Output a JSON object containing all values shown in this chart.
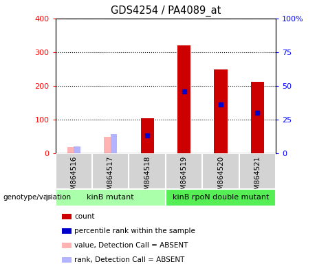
{
  "title": "GDS4254 / PA4089_at",
  "samples": [
    "GSM864516",
    "GSM864517",
    "GSM864518",
    "GSM864519",
    "GSM864520",
    "GSM864521"
  ],
  "count_values": [
    0,
    0,
    104,
    320,
    248,
    212
  ],
  "percentile_rank": [
    0,
    0,
    13,
    46,
    36,
    30
  ],
  "count_absent": [
    18,
    48,
    0,
    0,
    0,
    0
  ],
  "rank_absent": [
    5,
    14,
    0,
    0,
    0,
    0
  ],
  "absent_flags": [
    true,
    true,
    false,
    false,
    false,
    false
  ],
  "color_count": "#cc0000",
  "color_rank": "#0000cc",
  "color_count_absent": "#ffb3b3",
  "color_rank_absent": "#b3b3ff",
  "groups": [
    {
      "label": "kinB mutant",
      "indices": [
        0,
        1,
        2
      ],
      "color": "#aaffaa"
    },
    {
      "label": "kinB rpoN double mutant",
      "indices": [
        3,
        4,
        5
      ],
      "color": "#55ee55"
    }
  ],
  "ylim_left": [
    0,
    400
  ],
  "ylim_right": [
    0,
    100
  ],
  "yticks_left": [
    0,
    100,
    200,
    300,
    400
  ],
  "yticks_right": [
    0,
    25,
    50,
    75,
    100
  ],
  "yticklabels_right": [
    "0",
    "25",
    "50",
    "75",
    "100%"
  ],
  "bar_width": 0.18,
  "background_color": "#ffffff",
  "plot_bg_color": "#ffffff",
  "legend_items": [
    {
      "label": "count",
      "color": "#cc0000"
    },
    {
      "label": "percentile rank within the sample",
      "color": "#0000cc"
    },
    {
      "label": "value, Detection Call = ABSENT",
      "color": "#ffb3b3"
    },
    {
      "label": "rank, Detection Call = ABSENT",
      "color": "#b3b3ff"
    }
  ]
}
